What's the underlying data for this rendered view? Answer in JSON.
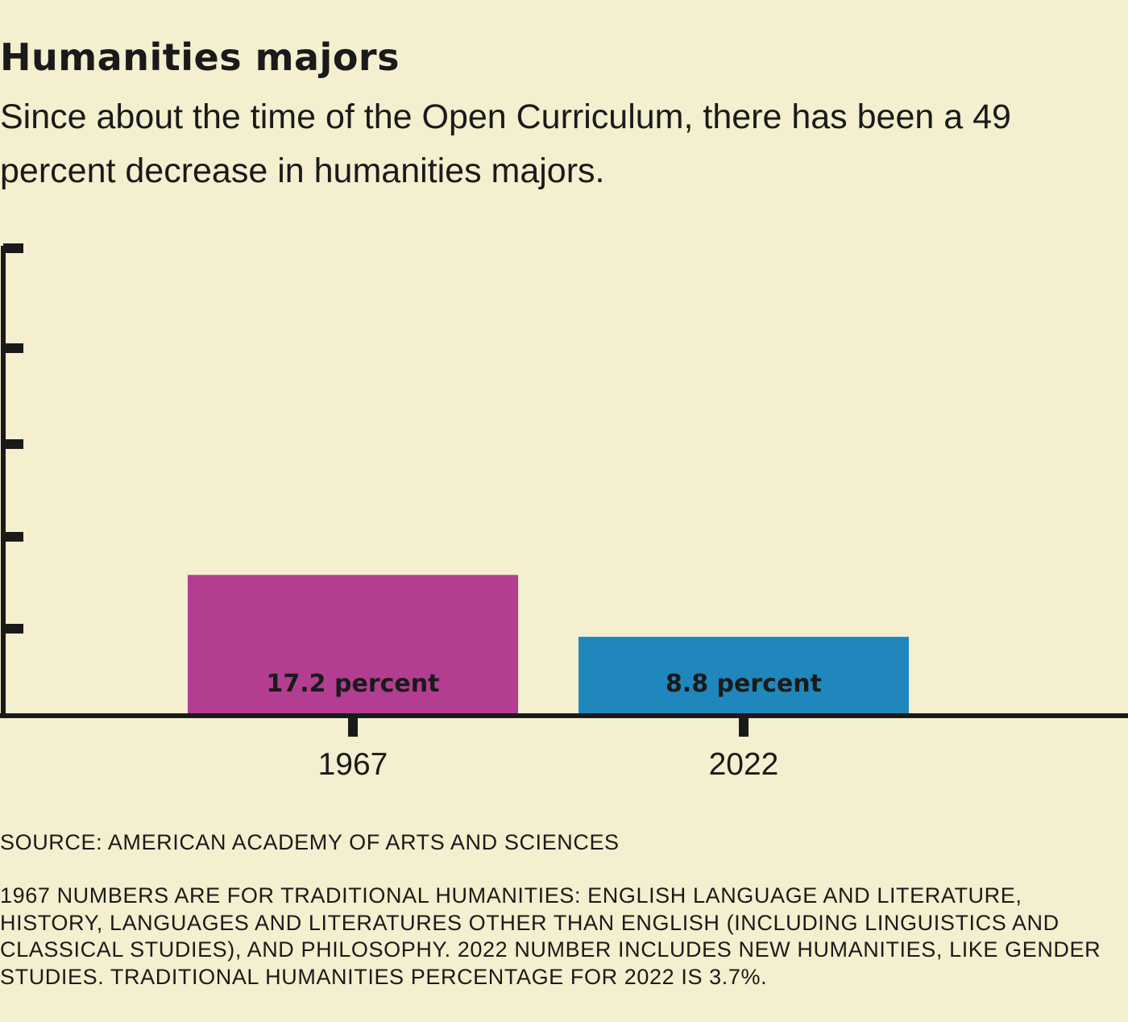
{
  "chart_data": {
    "type": "bar",
    "title": "Humanities majors",
    "subtitle": "Since about the time of the Open Curriculum, there has been a 49 percent decrease in humanities majors.",
    "categories": [
      "1967",
      "2022"
    ],
    "values": [
      17.2,
      8.8
    ],
    "unit": "percent",
    "data_labels": [
      "17.2 percent",
      "8.8 percent"
    ],
    "colors": [
      "#b23d91",
      "#1f87bb"
    ],
    "xlabel": "",
    "ylabel": "",
    "y_tick_labels": "none",
    "grid": false,
    "background": "#f3efcf"
  },
  "source": "SOURCE: AMERICAN ACADEMY OF ARTS AND SCIENCES",
  "note": "1967 NUMBERS ARE FOR TRADITIONAL HUMANITIES: ENGLISH LANGUAGE AND LITERATURE, HISTORY, LANGUAGES AND LITERATURES OTHER THAN ENGLISH (INCLUDING LINGUISTICS AND CLASSICAL STUDIES), AND PHILOSOPHY. 2022 NUMBER INCLUDES NEW HUMANITIES, LIKE GENDER STUDIES. TRADITIONAL HUMANITIES PERCENTAGE FOR 2022 IS 3.7%."
}
